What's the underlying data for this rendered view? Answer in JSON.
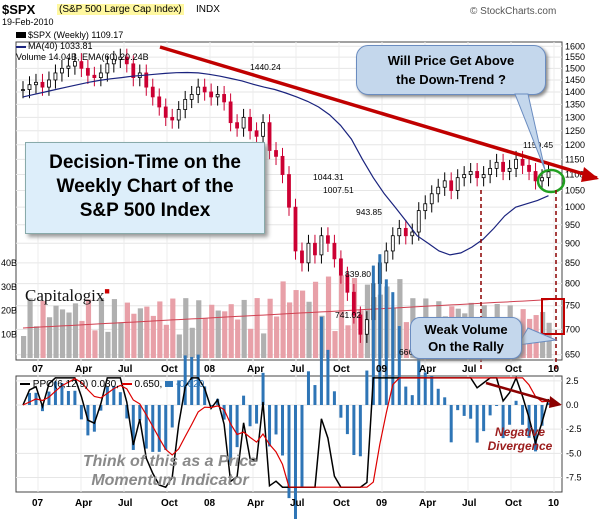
{
  "header": {
    "symbol": "$SPX",
    "name": "(S&P 500 Large Cap Index)",
    "exchange": "INDX",
    "date": "19-Feb-2010",
    "watermark": "© StockCharts.com"
  },
  "legend": {
    "price": "$SPX (Weekly) 1109.17",
    "ma": "MA(40) 1033.81",
    "volume": "Volume 14.04B, EMA(60) 20.24B"
  },
  "ppo_legend": {
    "label": "PPO(6,12,9)",
    "v1": "0.030,",
    "v2": "0.650,",
    "v3": "-0.620"
  },
  "annotations": {
    "title_box": [
      "Decision-Time on the",
      "Weekly Chart of the",
      "S&P 500 Index"
    ],
    "bubble_top": [
      "Will Price Get Above",
      "the Down-Trend ?"
    ],
    "bubble_volume": [
      "Weak Volume",
      "On the Rally"
    ],
    "negative_divergence": [
      "Negative",
      "Divergence"
    ],
    "momentum_note": [
      "Think of this as a Price",
      "Momentum Indicator"
    ],
    "logo": "Capitalogix"
  },
  "colors": {
    "up": "#000000",
    "down": "#cc0033",
    "ma": "#1a237e",
    "trend": "#c00000",
    "volume_up": "#b0b0b0",
    "volume_down": "#e8a0a8",
    "ppo_black": "#000000",
    "ppo_red": "#dd0000",
    "hist": "#2e75b6"
  },
  "chart_data": {
    "type": "candlestick",
    "title": "$SPX (S&P 500 Large Cap Index) INDX",
    "frequency": "weekly",
    "price_ylim": [
      640,
      1620
    ],
    "price_yticks": [
      650,
      700,
      750,
      800,
      850,
      900,
      950,
      1000,
      1050,
      1100,
      1150,
      1200,
      1250,
      1300,
      1350,
      1400,
      1450,
      1500,
      1550,
      1600
    ],
    "price_scale": "log",
    "x_ticks": [
      "07",
      "Apr",
      "Jul",
      "Oct",
      "08",
      "Apr",
      "Jul",
      "Oct",
      "09",
      "Apr",
      "Jul",
      "Oct",
      "10"
    ],
    "price_labels": [
      "1440.24",
      "1044.31",
      "1007.51",
      "943.85",
      "839.80",
      "741.02",
      "666.79",
      "1150.45"
    ],
    "price_path": [
      1410,
      1430,
      1440,
      1420,
      1450,
      1480,
      1500,
      1510,
      1530,
      1500,
      1470,
      1460,
      1480,
      1520,
      1540,
      1550,
      1520,
      1460,
      1480,
      1420,
      1380,
      1340,
      1300,
      1290,
      1330,
      1370,
      1390,
      1420,
      1400,
      1380,
      1390,
      1360,
      1280,
      1260,
      1300,
      1250,
      1230,
      1280,
      1180,
      1160,
      1100,
      1000,
      880,
      850,
      900,
      870,
      920,
      900,
      860,
      820,
      780,
      730,
      690,
      720,
      800,
      850,
      880,
      920,
      940,
      920,
      930,
      990,
      1010,
      1040,
      1060,
      1080,
      1050,
      1090,
      1100,
      1110,
      1090,
      1100,
      1120,
      1140,
      1110,
      1120,
      1150,
      1130,
      1110,
      1080,
      1090,
      1109
    ],
    "ma40_path": [
      1380,
      1390,
      1400,
      1410,
      1420,
      1430,
      1440,
      1448,
      1455,
      1460,
      1466,
      1470,
      1474,
      1478,
      1481,
      1482,
      1480,
      1474,
      1466,
      1456,
      1446,
      1432,
      1420,
      1410,
      1396,
      1380,
      1362,
      1340,
      1310,
      1270,
      1220,
      1150,
      1090,
      1040,
      1000,
      960,
      920,
      900,
      880,
      870,
      875,
      890,
      910,
      940,
      975,
      1000,
      1010,
      1020,
      1034
    ],
    "volume_ylim": [
      0,
      40
    ],
    "volume_yticks": [
      "10B",
      "20B",
      "30B",
      "40B"
    ],
    "volume_last": 14.04,
    "volume_ema60": 20.24,
    "ppo_ylim": [
      -9,
      3
    ],
    "ppo_yticks": [
      2.5,
      0.0,
      -2.5,
      -5.0,
      -7.5
    ],
    "ppo_last": 0.03,
    "ppo_signal_last": 0.65,
    "ppo_hist_last": -0.62
  }
}
